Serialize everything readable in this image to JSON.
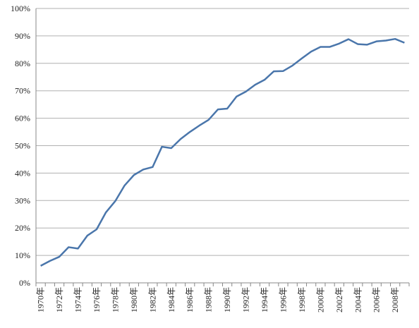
{
  "chart_data": {
    "type": "line",
    "categories": [
      "1970年",
      null,
      "1972年",
      null,
      "1974年",
      null,
      "1976年",
      null,
      "1978年",
      null,
      "1980年",
      null,
      "1982年",
      null,
      "1984年",
      null,
      "1986年",
      null,
      "1988年",
      null,
      "1990年",
      null,
      "1992年",
      null,
      "1994年",
      null,
      "1996年",
      null,
      "1998年",
      null,
      "2000年",
      null,
      "2002年",
      null,
      "2004年",
      null,
      "2006年",
      null,
      "2008年",
      null
    ],
    "series": [
      {
        "color": "#4a76ab",
        "values": [
          6.2,
          8,
          9.5,
          13,
          12.5,
          17.2,
          19.5,
          25.7,
          29.8,
          35.5,
          39.3,
          41.3,
          42.2,
          49.6,
          49.1,
          52.4,
          55,
          57.3,
          59.4,
          63.2,
          63.5,
          67.9,
          69.7,
          72.2,
          74,
          77.1,
          77.2,
          79.2,
          81.8,
          84.3,
          86,
          86,
          87.2,
          88.8,
          87,
          86.8,
          88,
          88.3,
          88.9,
          87.5
        ]
      }
    ],
    "ylim": [
      0,
      100
    ],
    "yticks": [
      {
        "value": 0,
        "label": "0%"
      },
      {
        "value": 10,
        "label": "10%"
      },
      {
        "value": 20,
        "label": "20%"
      },
      {
        "value": 30,
        "label": "30%"
      },
      {
        "value": 40,
        "label": "40%"
      },
      {
        "value": 50,
        "label": "50%"
      },
      {
        "value": 60,
        "label": "60%"
      },
      {
        "value": 70,
        "label": "70%"
      },
      {
        "value": 80,
        "label": "80%"
      },
      {
        "value": 90,
        "label": "90%"
      },
      {
        "value": 100,
        "label": "100%"
      }
    ],
    "grid": true
  }
}
